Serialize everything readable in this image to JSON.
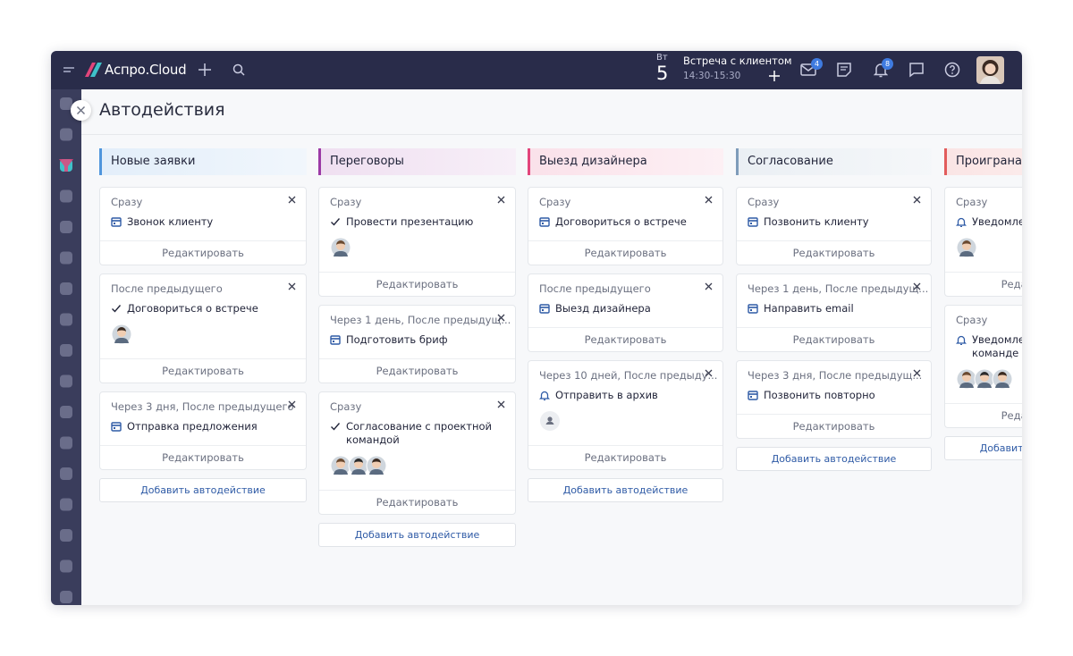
{
  "header": {
    "logo": "Аспро.Cloud",
    "weekday": "Вт",
    "day": 5,
    "event": {
      "title": "Встреча с клиентом",
      "time": "14:30-15:30"
    },
    "mail_badge": 4,
    "notifications_badge": 8
  },
  "page": {
    "title": "Автодействия"
  },
  "columns": [
    {
      "title": "Новые заявки",
      "color": "#4f95dc",
      "cards": [
        {
          "timing": "Сразу",
          "action": "Звонок клиенту",
          "edit": "Редактировать"
        },
        {
          "timing": "После предыдущего",
          "action": "Договориться о встрече",
          "edit": "Редактировать"
        },
        {
          "timing": "Через 3 дня, После предыдущего",
          "action": "Отправка предложения",
          "edit": "Редактировать"
        }
      ],
      "add": "Добавить автодействие"
    },
    {
      "title": "Переговоры",
      "color": "#9c3aa6",
      "cards": [
        {
          "timing": "Сразу",
          "action": "Провести презентацию",
          "edit": "Редактировать"
        },
        {
          "timing": "Через 1 день, После предыдущ...",
          "action": "Подготовить бриф",
          "edit": "Редактировать"
        },
        {
          "timing": "Сразу",
          "action": "Согласование с проектной командой",
          "edit": "Редактировать"
        }
      ],
      "add": "Добавить автодействие"
    },
    {
      "title": "Выезд дизайнера",
      "color": "#e2457b",
      "cards": [
        {
          "timing": "Сразу",
          "action": "Договориться о встрече",
          "edit": "Редактировать"
        },
        {
          "timing": "После предыдущего",
          "action": "Выезд дизайнера",
          "edit": "Редактировать"
        },
        {
          "timing": "Через 10 дней, После предыду...",
          "action": "Отправить в архив",
          "edit": "Редактировать"
        }
      ],
      "add": "Добавить автодействие"
    },
    {
      "title": "Согласование",
      "color": "#7f9cba",
      "cards": [
        {
          "timing": "Сразу",
          "action": "Позвонить клиенту",
          "edit": "Редактировать"
        },
        {
          "timing": "Через 1 день, После предыдущ...",
          "action": "Направить email",
          "edit": "Редактировать"
        },
        {
          "timing": "Через 3 дня, После предыдущ...",
          "action": "Позвонить повторно",
          "edit": "Редактировать"
        }
      ],
      "add": "Добавить автодействие"
    },
    {
      "title": "Проиграна",
      "color": "#e25c5c",
      "cards": [
        {
          "timing": "Сразу",
          "action": "Уведомление",
          "edit": "Редактировать"
        },
        {
          "timing": "Сразу",
          "action": "Уведомление проектной команде",
          "edit": "Редактировать"
        }
      ],
      "add": "Добавить автодействие"
    }
  ]
}
